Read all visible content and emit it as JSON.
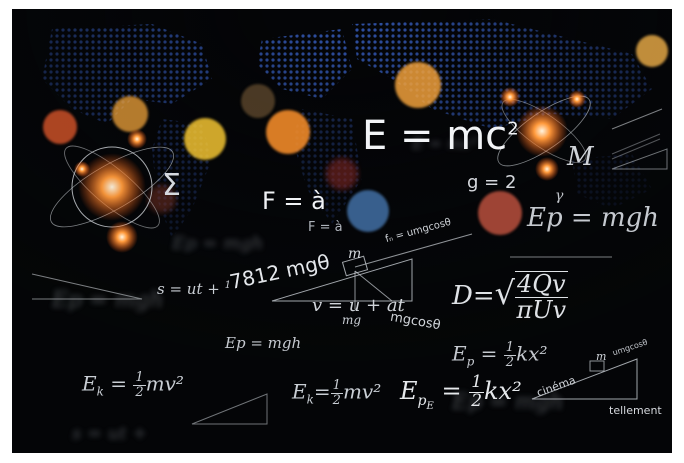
{
  "formulas": {
    "emc2_main": "E = mc",
    "emc2_exp": "2",
    "f_eq_a_big": "F = à",
    "f_eq_a_small": "F = à",
    "g_eq_2": "g = 2",
    "ep_mgh_right": "Ep = mgh",
    "ep_mgh_mid": "Ep = mgh",
    "s_ut": "s = ut +",
    "s_half": "1",
    "mg_7812": "7812 mgθ",
    "v_eq": "v = u + at",
    "mg_label": "mg",
    "mgcos_label": "mgcosθ",
    "fn_label": "fₙ = umgcosθ",
    "m_label_1": "m",
    "m_label_2": "m",
    "d_lhs": "D=",
    "d_num": "4Qv",
    "d_den": "πUv",
    "ek_left": "E",
    "ek_left_sub": "k",
    "ek_left_eq": " = ",
    "ek_left_num": "1",
    "ek_left_den": "2",
    "ek_left_rest": "mv²",
    "ek_mid": "E",
    "ek_mid_sub": "k",
    "ek_mid_eq": "=",
    "ek_mid_num": "1",
    "ek_mid_den": "2",
    "ek_mid_rest": "mv²",
    "epe_base": "E",
    "epe_sub": "p",
    "epe_subsub": "E",
    "epe_eq": " = ",
    "epe_num": "1",
    "epe_den": "2",
    "epe_rest": "kx²",
    "ep_frac_base": "E",
    "ep_frac_sub": "p",
    "ep_frac_eq": " = ",
    "ep_frac_num": "1",
    "ep_frac_den": "2",
    "ep_frac_rest": "kx²",
    "cinema": "cinéma",
    "tellement": "tellement",
    "umgcose_small": "umgcosθ",
    "sigma": "Σ",
    "m_symbol": "M",
    "gamma": "γ",
    "blurred_ep": "Ep = mgh",
    "blurred_s": "s = ut +"
  },
  "colors": {
    "background": "#050608",
    "world_map_dots": "#3a63c9",
    "bokeh_orange": "#f08a2c",
    "bokeh_red": "#d8402a",
    "bokeh_yellow": "#f2c431",
    "bokeh_blue": "#4f86c6",
    "formula_white": "#e8ebef"
  }
}
